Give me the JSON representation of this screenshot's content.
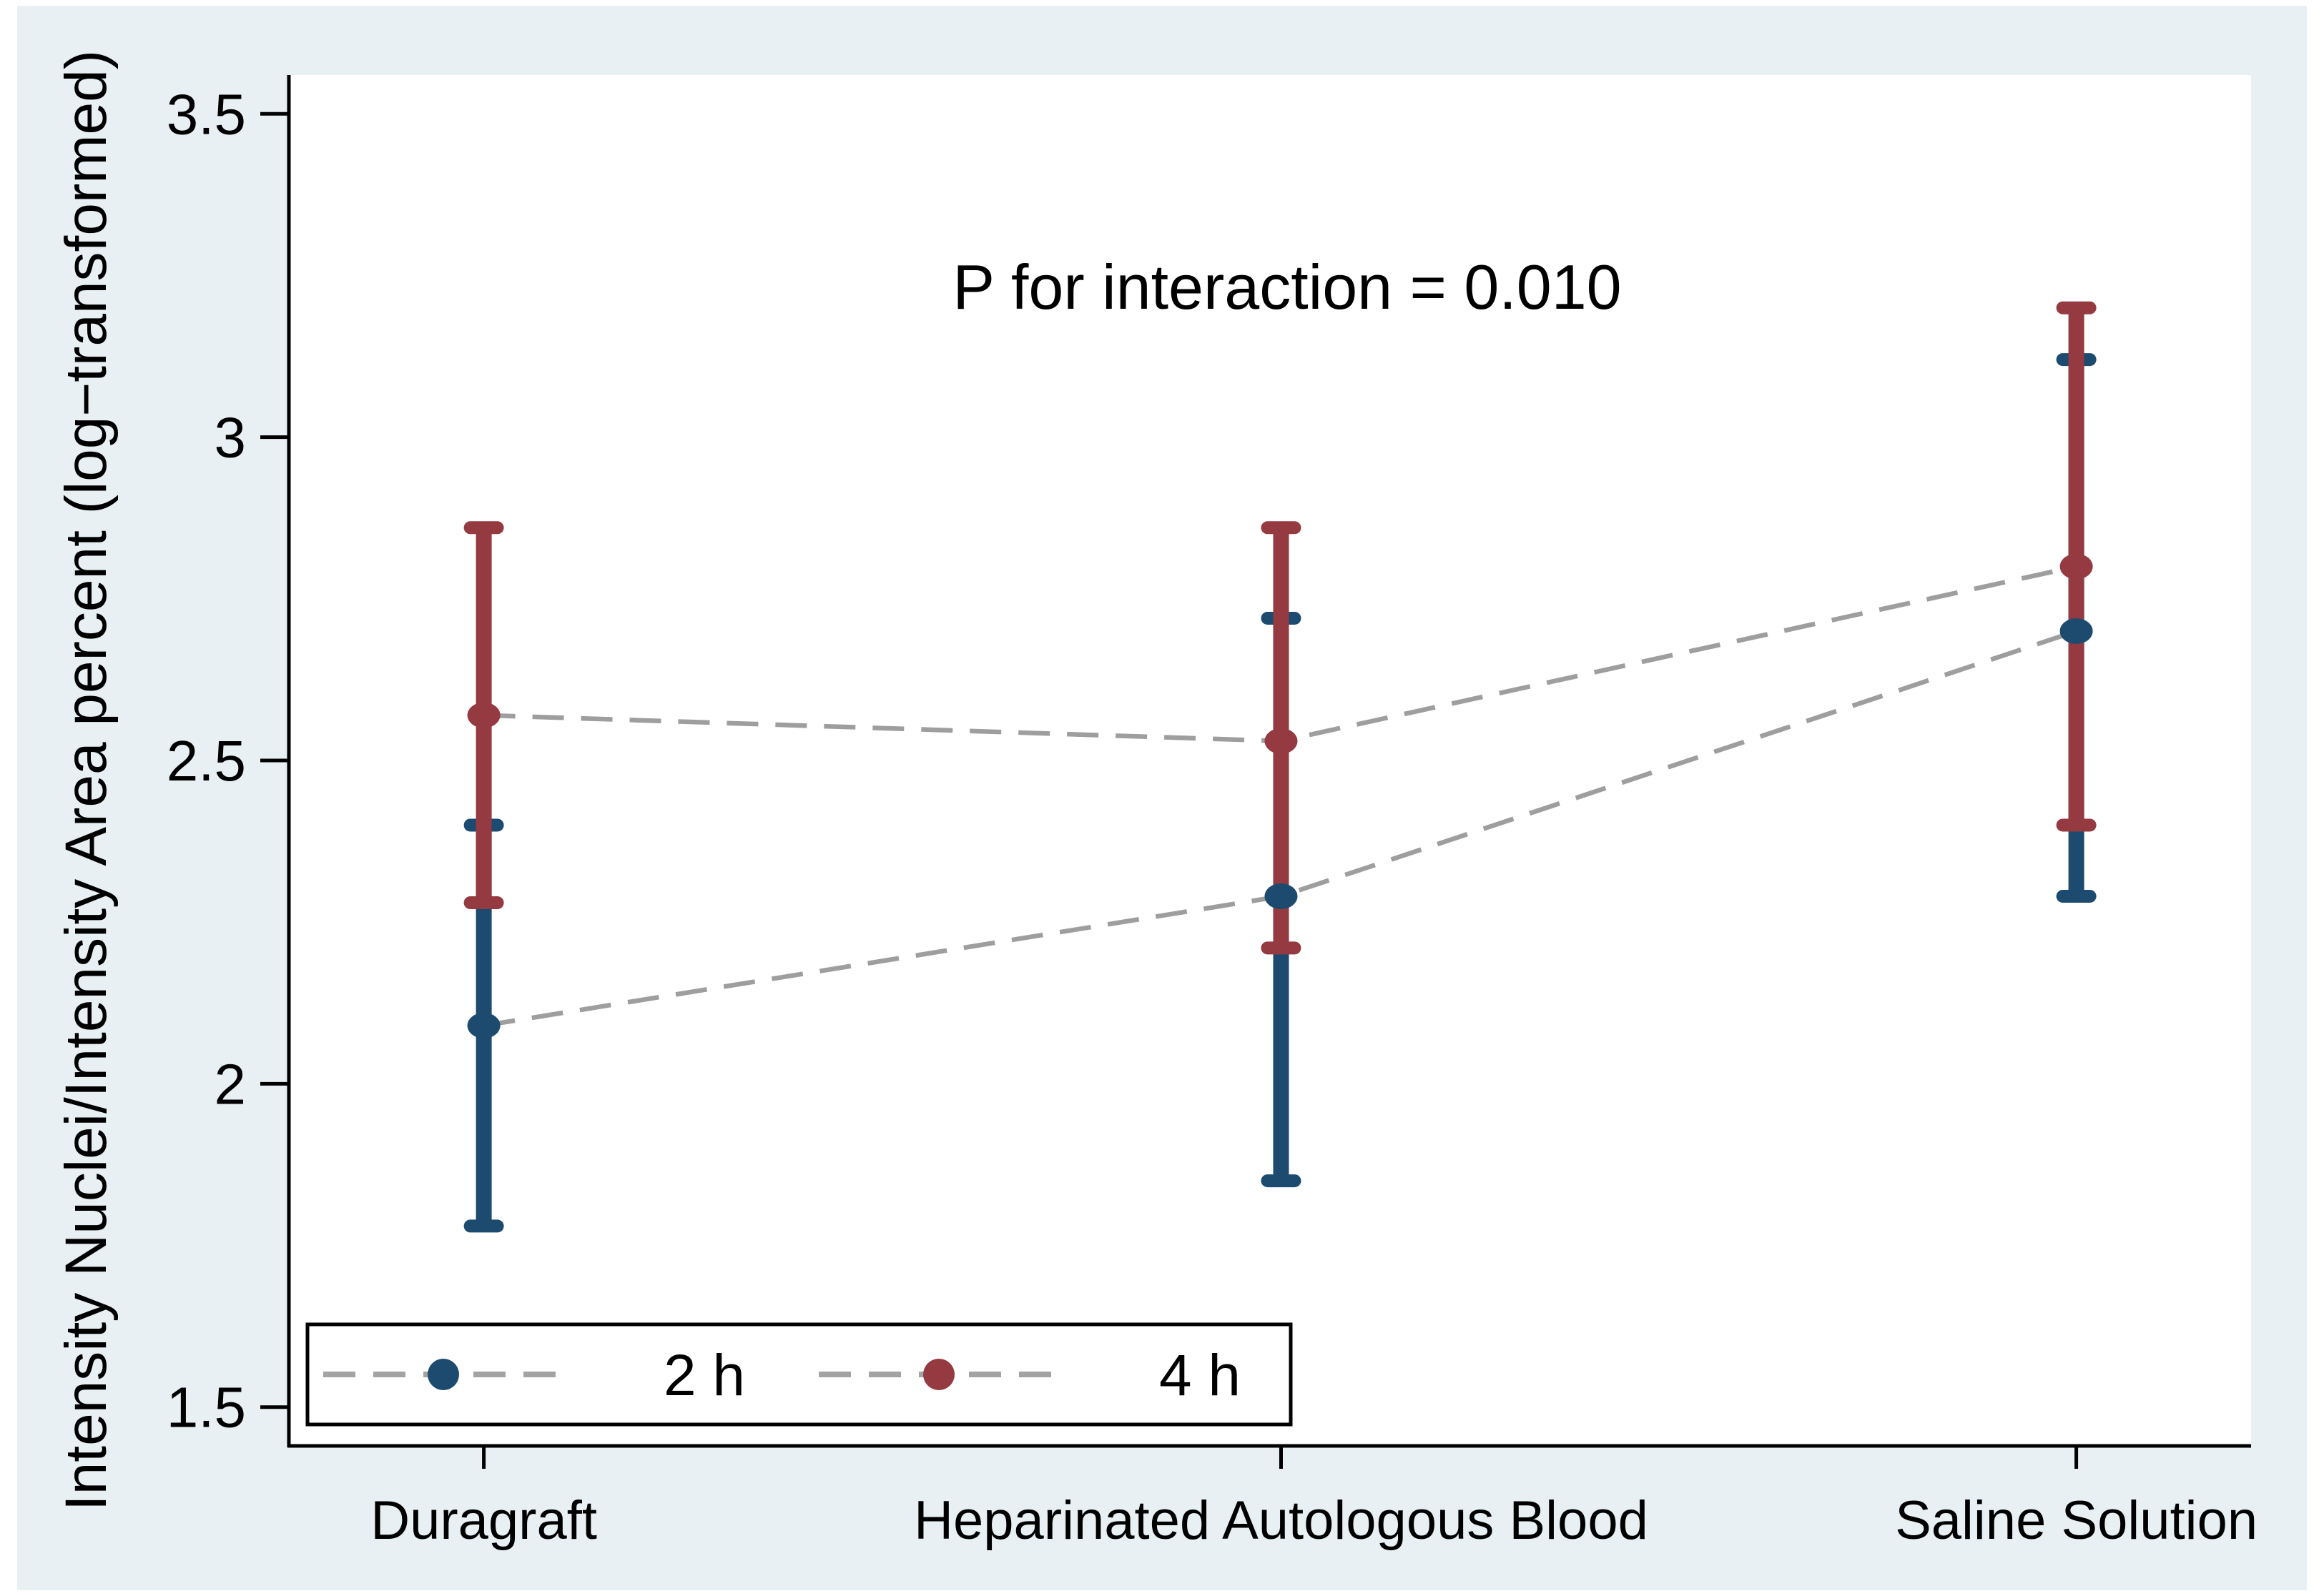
{
  "figure": {
    "outer_background": "#ffffff",
    "canvas_background": "#e8f0f3",
    "plot_background": "#ffffff",
    "axis_color": "#000000",
    "connector_color": "#9e9e9e",
    "legend_line_color": "#a3a3a3",
    "legend_border_color": "#000000"
  },
  "chart_data": {
    "type": "line",
    "title": "",
    "annotation": "P for interaction = 0.010",
    "ylabel": "Intensity Nuclei/Intensity Area percent (log−transformed)",
    "xlabel": "",
    "categories": [
      "Duragraft",
      "Heparinated Autologous Blood",
      "Saline Solution"
    ],
    "yticks": [
      3.5,
      3,
      2.5,
      2,
      1.5
    ],
    "ylim": [
      1.44,
      3.56
    ],
    "grid": false,
    "legend_position": "inside bottom-left",
    "marker_style": "filled circle with vertical 95% CI error bars and dashed gray connector lines",
    "series": [
      {
        "name": "2 h",
        "color": "#1d4b70",
        "means": [
          2.09,
          2.29,
          2.7
        ],
        "ci_low": [
          1.78,
          1.85,
          2.29
        ],
        "ci_high": [
          2.4,
          2.72,
          3.12
        ]
      },
      {
        "name": "4 h",
        "color": "#943a40",
        "means": [
          2.57,
          2.53,
          2.8
        ],
        "ci_low": [
          2.28,
          2.21,
          2.4
        ],
        "ci_high": [
          2.86,
          2.86,
          3.2
        ]
      }
    ]
  }
}
